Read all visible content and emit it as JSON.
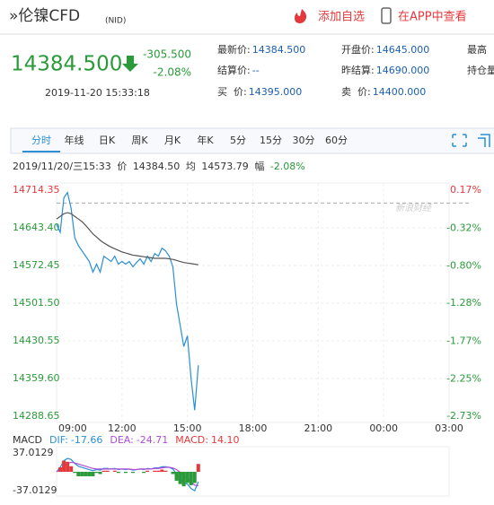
{
  "header": {
    "title": "»伦镍CFD",
    "code": "(NID)",
    "actions": [
      "添加自选",
      "在APP中查看"
    ]
  },
  "quote": {
    "price": "14384.500",
    "change": "-305.500",
    "pct": "-2.08%",
    "time": "2019-11-20 15:33:18"
  },
  "fields": [
    [
      {
        "label": "最新价:",
        "value": "14384.500"
      },
      {
        "label": "结算价:",
        "value": "--"
      },
      {
        "label": "买  价:",
        "value": "14395.000"
      }
    ],
    [
      {
        "label": "开盘价:",
        "value": "14645.000"
      },
      {
        "label": "昨结算:",
        "value": "14690.000"
      },
      {
        "label": "卖  价:",
        "value": "14400.000"
      }
    ],
    [
      {
        "label": "最高"
      },
      {
        "label": "持仓量"
      }
    ]
  ],
  "tabs": [
    "分时",
    "年线",
    "日K",
    "周K",
    "月K",
    "年K",
    "5分",
    "15分",
    "30分",
    "60分"
  ],
  "info": {
    "time": "2019/11/20/三15:33",
    "price": "14384.50",
    "avg": "14573.79",
    "range_label": "幅",
    "range": "-2.08%"
  },
  "watermark": "新浪财经",
  "chart_data": [
    {
      "type": "line",
      "x": [
        "09:00",
        "09:10",
        "09:20",
        "09:30",
        "09:40",
        "09:50",
        "10:00",
        "10:10",
        "10:20",
        "10:30",
        "10:40",
        "10:50",
        "11:00",
        "11:10",
        "11:20",
        "11:30",
        "11:40",
        "11:50",
        "12:00",
        "12:10",
        "12:20",
        "12:30",
        "12:40",
        "12:50",
        "13:00",
        "13:10",
        "13:20",
        "13:30",
        "13:40",
        "13:50",
        "14:00",
        "14:10",
        "14:20",
        "14:30",
        "14:40",
        "14:50",
        "15:00",
        "15:10",
        "15:20",
        "15:30"
      ],
      "series": [
        {
          "name": "价",
          "color": "#2a8fd4",
          "values": [
            14650,
            14635,
            14700,
            14710,
            14680,
            14625,
            14610,
            14600,
            14590,
            14580,
            14560,
            14575,
            14560,
            14590,
            14585,
            14580,
            14590,
            14575,
            14580,
            14575,
            14580,
            14570,
            14578,
            14585,
            14575,
            14590,
            14580,
            14595,
            14590,
            14605,
            14600,
            14590,
            14570,
            14500,
            14460,
            14420,
            14440,
            14360,
            14300,
            14384.5
          ]
        },
        {
          "name": "均",
          "color": "#555555",
          "values": [
            14660,
            14665,
            14670,
            14672,
            14670,
            14665,
            14660,
            14655,
            14648,
            14640,
            14632,
            14626,
            14620,
            14615,
            14611,
            14607,
            14604,
            14601,
            14598,
            14596,
            14594,
            14592,
            14591,
            14590,
            14589,
            14588,
            14587,
            14586,
            14586,
            14586,
            14586,
            14585,
            14584,
            14582,
            14580,
            14578,
            14577,
            14576,
            14575,
            14573.79
          ]
        }
      ],
      "baseline": 14690,
      "ylim": [
        14288.65,
        14714.35
      ],
      "yticks": [
        14714.35,
        {
          "value": 14643.4,
          "label": "14643.40"
        },
        14572.45,
        {
          "value": 14501.5,
          "label": "14501.50"
        },
        14430.55,
        {
          "value": 14359.6,
          "label": "14359.60"
        },
        14288.65
      ],
      "y2lim": [
        -2.73,
        0.17
      ],
      "y2ticks": [
        {
          "value": 0.17,
          "label": "0.17%"
        },
        {
          "value": -0.32,
          "label": "-0.32%"
        },
        {
          "value": -0.8,
          "label": "-0.80%"
        },
        {
          "value": -1.28,
          "label": "-1.28%"
        },
        {
          "value": -1.77,
          "label": "-1.77%"
        },
        {
          "value": -2.25,
          "label": "-2.25%"
        },
        {
          "value": -2.73,
          "label": "-2.73%"
        }
      ],
      "xticks": [
        "09:00",
        "12:00",
        "15:00",
        "18:00",
        "21:00",
        "00:00",
        "03:00"
      ],
      "positive_color": "#e4393c",
      "negative_color": "#2a9a3a",
      "grid": true
    },
    {
      "type": "macd",
      "title": "MACD",
      "ylim": [
        -37.0129,
        37.0129
      ],
      "yticks": [
        37.0129,
        -37.0129
      ],
      "series": [
        {
          "name": "DIF:",
          "current": "-17.66",
          "color": "#2a8fd4",
          "values": [
            0,
            8,
            20,
            24,
            22,
            15,
            10,
            8,
            6,
            4,
            2,
            4,
            3,
            6,
            6,
            5,
            6,
            4,
            5,
            4,
            5,
            3,
            4,
            5,
            4,
            6,
            5,
            7,
            7,
            9,
            9,
            8,
            5,
            -4,
            -12,
            -20,
            -22,
            -30,
            -34,
            -17.66
          ]
        },
        {
          "name": "DEA:",
          "current": "-24.71",
          "color": "#b24bd8",
          "values": [
            0,
            4,
            10,
            15,
            17,
            16,
            14,
            12,
            10,
            8,
            6,
            5,
            5,
            5,
            5,
            5,
            5,
            5,
            5,
            5,
            5,
            4,
            4,
            5,
            5,
            5,
            5,
            6,
            6,
            7,
            8,
            8,
            7,
            4,
            -1,
            -7,
            -12,
            -18,
            -24,
            -24.71
          ]
        },
        {
          "name": "MACD:",
          "current": "14.10",
          "color": "#e4393c",
          "negative_color": "#2a9a3a",
          "bar": true,
          "values": [
            0,
            8,
            20,
            18,
            10,
            -2,
            -8,
            -8,
            -8,
            -8,
            -8,
            -2,
            -4,
            2,
            2,
            0,
            2,
            -2,
            0,
            -2,
            0,
            -2,
            0,
            0,
            -2,
            2,
            0,
            2,
            2,
            4,
            2,
            0,
            -4,
            -16,
            -22,
            -26,
            -20,
            -24,
            -20,
            14.1
          ]
        }
      ]
    }
  ]
}
